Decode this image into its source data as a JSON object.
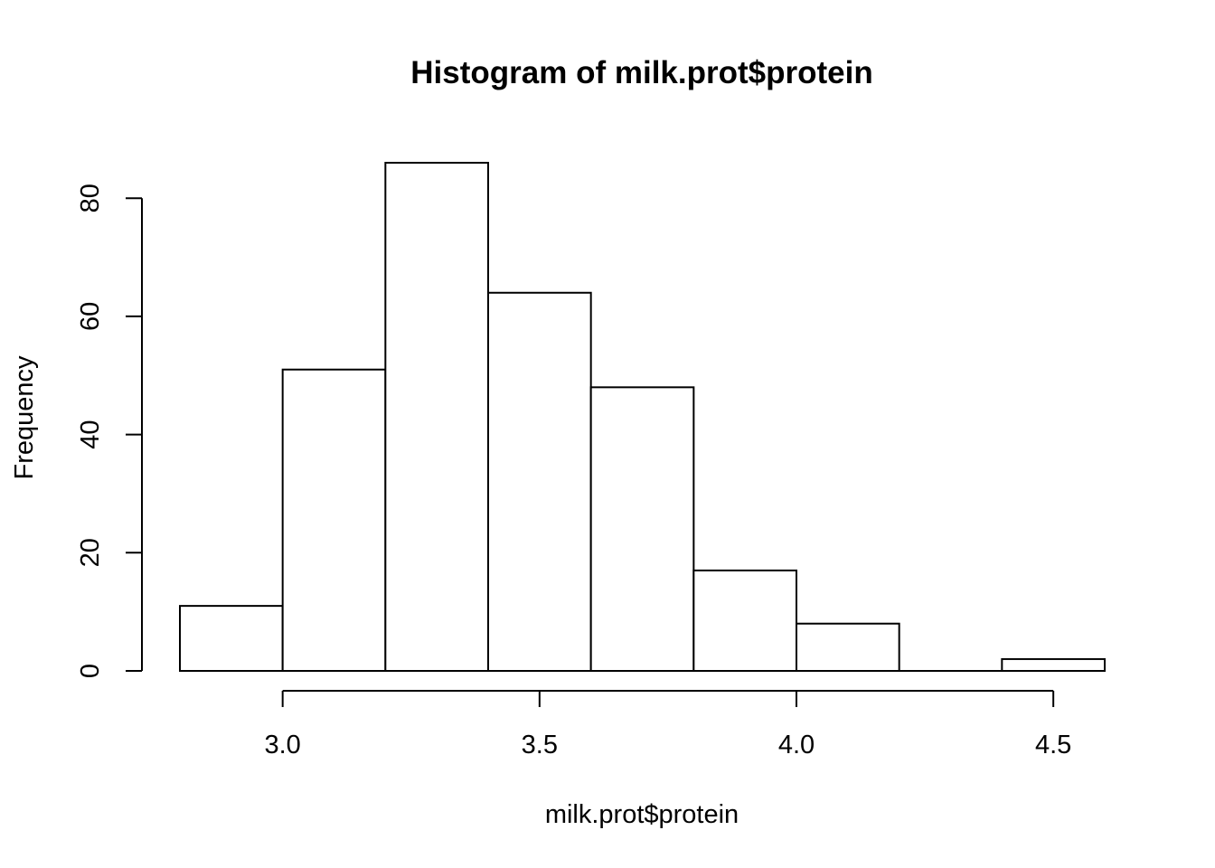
{
  "chart_data": {
    "type": "bar",
    "subtype": "histogram",
    "title": "Histogram of milk.prot$protein",
    "xlabel": "milk.prot$protein",
    "ylabel": "Frequency",
    "bins": [
      {
        "start": 2.8,
        "end": 3.0,
        "count": 11
      },
      {
        "start": 3.0,
        "end": 3.2,
        "count": 51
      },
      {
        "start": 3.2,
        "end": 3.4,
        "count": 86
      },
      {
        "start": 3.4,
        "end": 3.6,
        "count": 64
      },
      {
        "start": 3.6,
        "end": 3.8,
        "count": 48
      },
      {
        "start": 3.8,
        "end": 4.0,
        "count": 17
      },
      {
        "start": 4.0,
        "end": 4.2,
        "count": 8
      },
      {
        "start": 4.2,
        "end": 4.4,
        "count": 0
      },
      {
        "start": 4.4,
        "end": 4.6,
        "count": 2
      }
    ],
    "xlim": [
      2.8,
      4.6
    ],
    "ylim": [
      0,
      86
    ],
    "x_ticks": [
      3.0,
      3.5,
      4.0,
      4.5
    ],
    "x_tick_labels": [
      "3.0",
      "3.5",
      "4.0",
      "4.5"
    ],
    "y_ticks": [
      0,
      20,
      40,
      60,
      80
    ],
    "y_tick_labels": [
      "0",
      "20",
      "40",
      "60",
      "80"
    ],
    "bar_fill": "#ffffff",
    "bar_stroke": "#000000",
    "grid": false,
    "legend": "none"
  }
}
